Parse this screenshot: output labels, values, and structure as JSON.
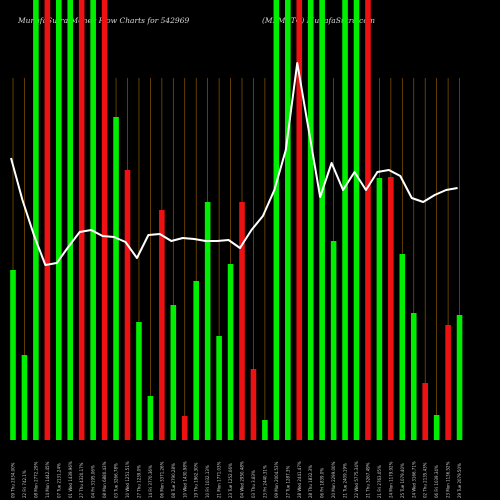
{
  "header": {
    "left_title": "MunafaSutra Money Flow Charts for 542969",
    "right_title": "(MFMSTC) MunafaSutra.com"
  },
  "colors": {
    "background": "#000000",
    "up_bar": "#00ee00",
    "down_bar": "#ee1111",
    "line": "#ffffff",
    "grid": "#8a5a00"
  },
  "chart_data": {
    "type": "bar",
    "title": "MunafaSutra Money Flow Charts for 542969",
    "subtitle": "(MFMSTC) MunafaSutra.com",
    "grid": true,
    "x": [
      "09 Thu 2034.00%",
      "22 Fri 742.1%",
      "08 Mon 2772.29%",
      "14 Mon 1442.45%",
      "07 Tue 2131.24%",
      "01 Wed 1439.96%",
      "27 Thu 4320.17%",
      "04 Fri 3195.06%",
      "08 Mon 6880.43%",
      "03 Tue 3266.78%",
      "10 Wed 1251.51%",
      "27 Thu 1239.0%",
      "14 Fri 3770.36%",
      "06 Mon 3371.26%",
      "08 Tue 2790.28%",
      "10 Wed 1430.98%",
      "19 Thu 1962.30%",
      "10 Fri 1032.13%",
      "21 Mon 1771.03%",
      "23 Tue 1252.06%",
      "04 Wed 2950.48%",
      "03 Thu 3.83%",
      "23 Fri 2440.31%",
      "09 Mon 2004.53%",
      "27 Tue 1287.3%",
      "28 Wed 2441.47%",
      "28 Thu 1832.3%",
      "06 Fri 1839.0%",
      "20 Mon 2299.00%",
      "21 Tue 2409.19%",
      "22 Wed 5775.34%",
      "21 Thu 3267.49%",
      "21 Fri 2763.05%",
      "24 Mon 1179.92%",
      "25 Tue 1079.40%",
      "24 Wed 3166.71%",
      "02 Thu 2135.43%",
      "06 Fri 1039.34%",
      "23 Mon 1136.52%",
      "29 Tue 2079.50%"
    ],
    "series": [
      {
        "type": "bar",
        "values": [
          170,
          85,
          440,
          440,
          440,
          440,
          440,
          440,
          440,
          323,
          270,
          118,
          44,
          230,
          135,
          24,
          159,
          238,
          104,
          176,
          238,
          71,
          20,
          440,
          440,
          440,
          440,
          440,
          199,
          440,
          440,
          440,
          262,
          263,
          186,
          127,
          57,
          25,
          115,
          125
        ],
        "colors": [
          "up",
          "up",
          "up",
          "down",
          "up",
          "up",
          "down",
          "up",
          "down",
          "up",
          "down",
          "up",
          "up",
          "down",
          "up",
          "down",
          "up",
          "up",
          "up",
          "up",
          "down",
          "down",
          "up",
          "up",
          "up",
          "down",
          "up",
          "up",
          "up",
          "up",
          "up",
          "down",
          "up",
          "down",
          "up",
          "up",
          "down",
          "up",
          "down",
          "up"
        ]
      },
      {
        "type": "line",
        "values": [
          282,
          240,
          205,
          175,
          177,
          193,
          208,
          210,
          204,
          203,
          198,
          182,
          205,
          206,
          199,
          202,
          201,
          199,
          199,
          200,
          192,
          210,
          224,
          250,
          290,
          377,
          310,
          243,
          277,
          250,
          268,
          250,
          268,
          270,
          264,
          242,
          238,
          245,
          250,
          252
        ]
      }
    ],
    "ylim": [
      0,
      440
    ]
  }
}
